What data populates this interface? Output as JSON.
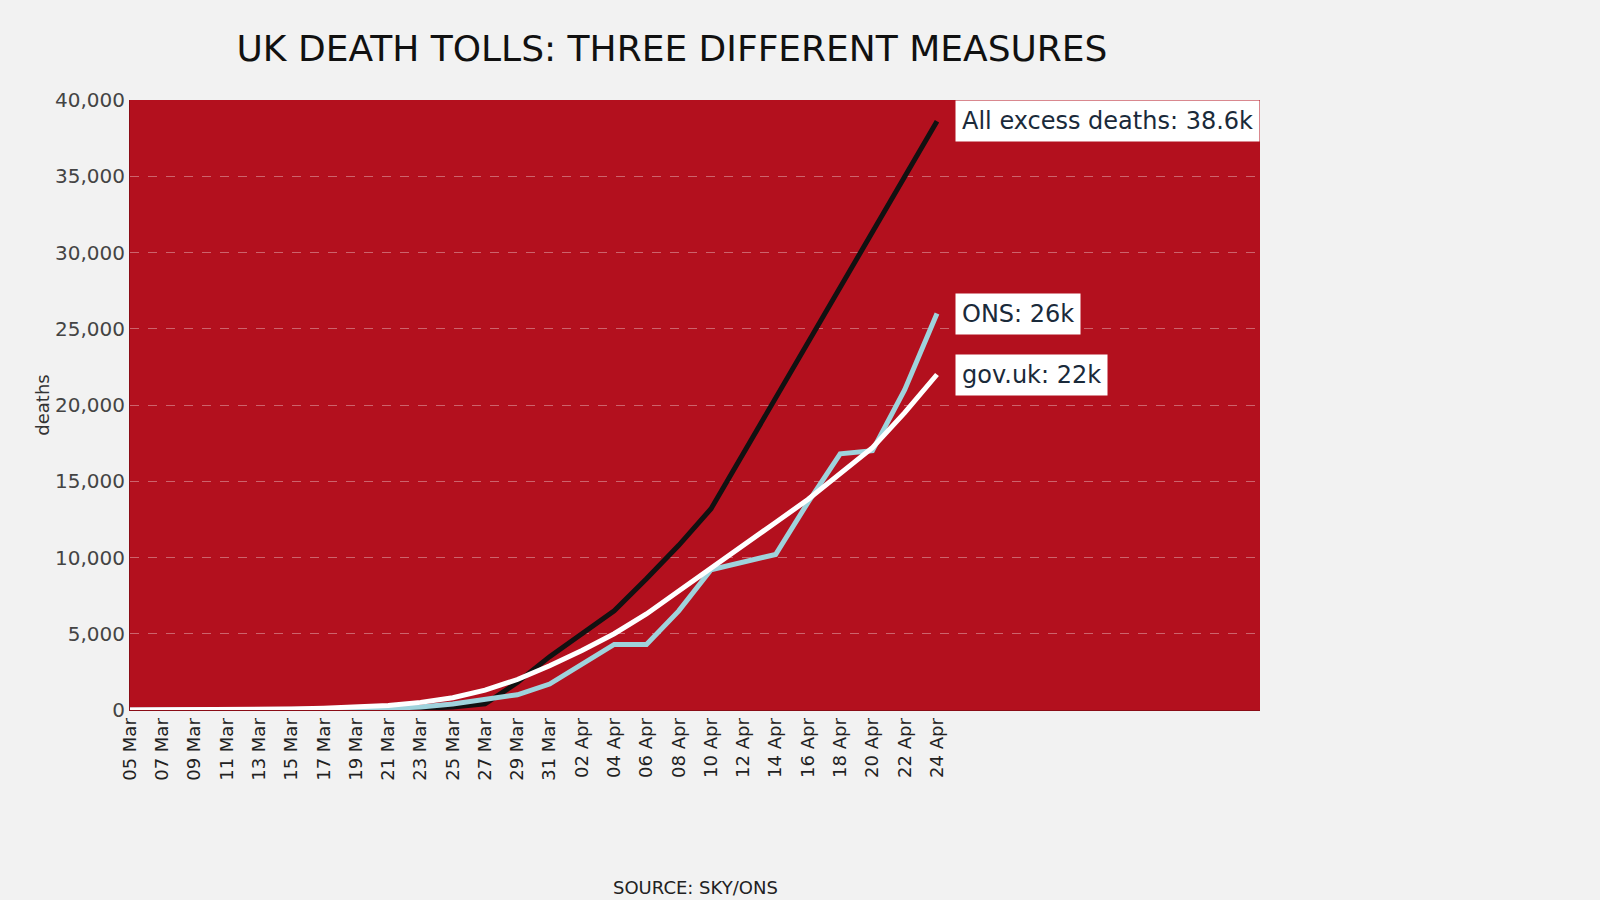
{
  "chart_data": {
    "type": "line",
    "title": "UK DEATH TOLLS: THREE DIFFERENT MEASURES",
    "y_label": "deaths",
    "source": "SOURCE: SKY/ONS",
    "categories": [
      "05 Mar",
      "07 Mar",
      "09 Mar",
      "11 Mar",
      "13 Mar",
      "15 Mar",
      "17 Mar",
      "19 Mar",
      "21 Mar",
      "23 Mar",
      "25 Mar",
      "27 Mar",
      "29 Mar",
      "31 Mar",
      "02 Apr",
      "04 Apr",
      "06 Apr",
      "08 Apr",
      "10 Apr",
      "12 Apr",
      "14 Apr",
      "16 Apr",
      "18 Apr",
      "20 Apr",
      "22 Apr",
      "24 Apr"
    ],
    "series": [
      {
        "name": "All excess deaths: 38.6k",
        "color": "#111111",
        "values": [
          null,
          null,
          null,
          null,
          null,
          null,
          null,
          null,
          0,
          100,
          200,
          400,
          1800,
          3500,
          5000,
          6500,
          8600,
          10800,
          13200,
          16830,
          20460,
          24090,
          27710,
          31340,
          34970,
          38600
        ]
      },
      {
        "name": "ONS: 26k",
        "color": "#9fd3dc",
        "values": [
          0,
          0,
          0,
          0,
          0,
          10,
          30,
          60,
          100,
          200,
          400,
          700,
          1000,
          1700,
          3000,
          4300,
          4300,
          6500,
          9200,
          9700,
          10200,
          13600,
          16800,
          17000,
          21000,
          26000
        ]
      },
      {
        "name": "gov.uk: 22k",
        "color": "#ffffff",
        "values": [
          0,
          0,
          10,
          20,
          40,
          70,
          120,
          200,
          300,
          500,
          800,
          1300,
          2000,
          2900,
          3900,
          5000,
          6300,
          7800,
          9300,
          10700,
          12300,
          13800,
          15500,
          17200,
          19500,
          22000
        ]
      }
    ],
    "ylim": [
      0,
      40000
    ],
    "yticks": [
      0,
      {
        "value": 5000,
        "label": "5,000"
      },
      {
        "value": 10000,
        "label": "10,000"
      },
      {
        "value": 15000,
        "label": "15,000"
      },
      {
        "value": 20000,
        "label": "20,000"
      },
      {
        "value": 25000,
        "label": "25,000"
      },
      {
        "value": 30000,
        "label": "30,000"
      },
      {
        "value": 35000,
        "label": "35,000"
      },
      {
        "value": 40000,
        "label": "40,000"
      }
    ],
    "grid": true
  }
}
